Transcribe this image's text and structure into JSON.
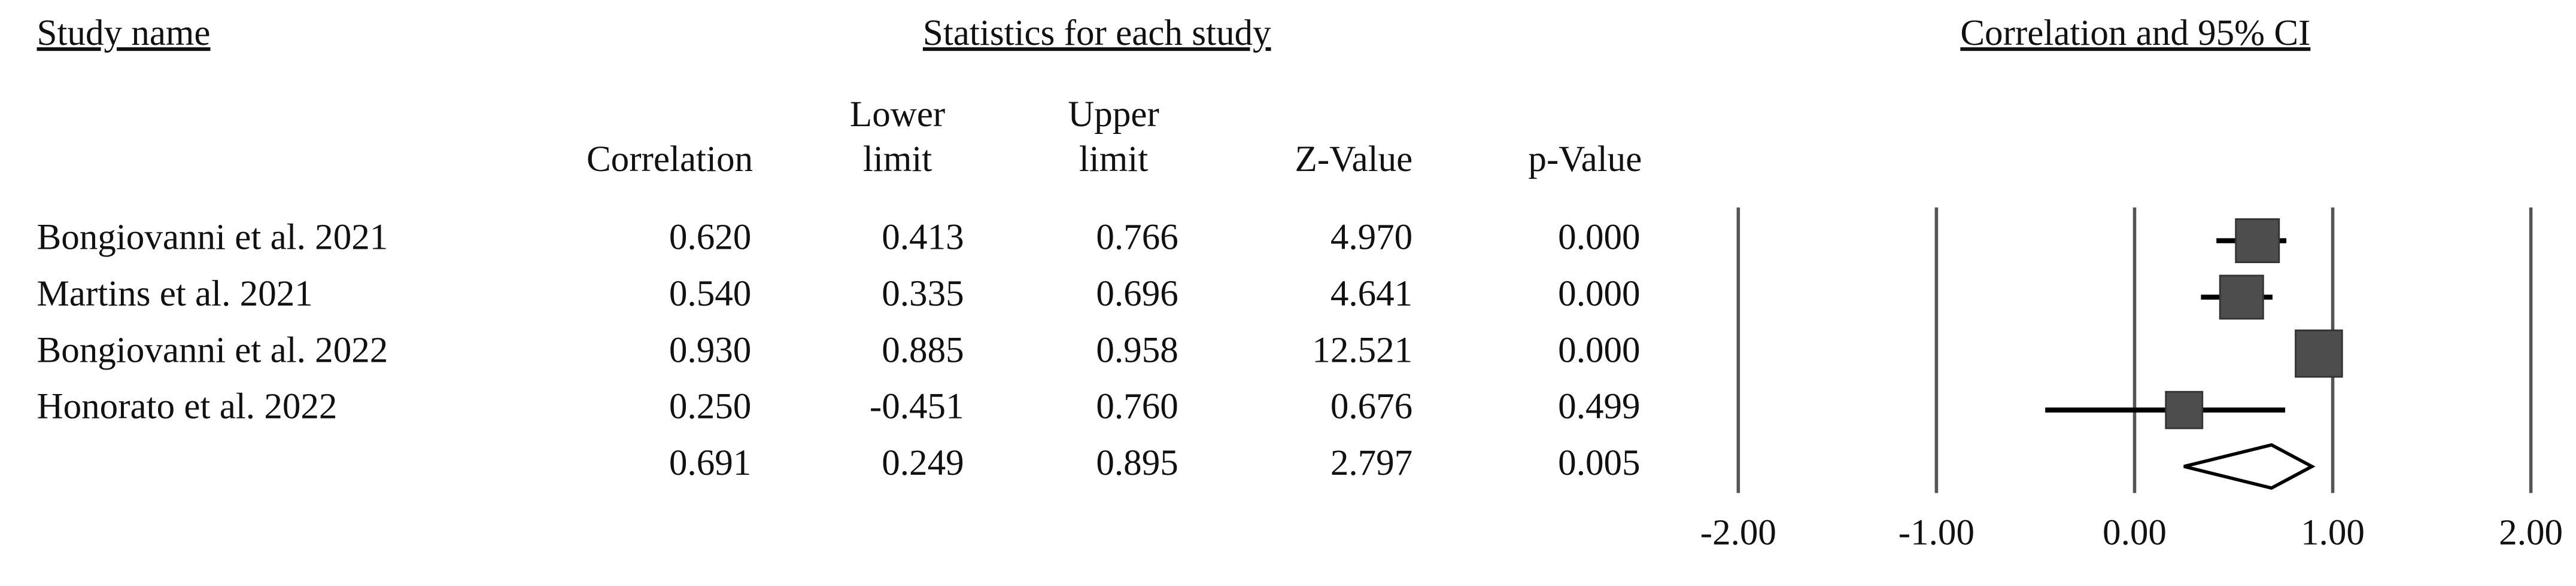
{
  "chart_data": {
    "type": "forest",
    "title": "Correlation and 95% CI",
    "study_header": "Study name",
    "stats_header": "Statistics for each study",
    "columns": [
      [
        "Correlation"
      ],
      [
        "Lower",
        "limit"
      ],
      [
        "Upper",
        "limit"
      ],
      [
        "Z-Value"
      ],
      [
        "p-Value"
      ]
    ],
    "categories": [
      "Bongiovanni et al. 2021",
      "Martins et al. 2021",
      "Bongiovanni et al. 2022",
      "Honorato et al. 2022",
      null
    ],
    "values": [
      0.62,
      0.54,
      0.93,
      0.25,
      0.691
    ],
    "value_labels": [
      "0.620",
      "0.540",
      "0.930",
      "0.250",
      "0.691"
    ],
    "lower": [
      0.413,
      0.335,
      0.885,
      -0.451,
      0.249
    ],
    "lower_labels": [
      "0.413",
      "0.335",
      "0.885",
      "-0.451",
      "0.249"
    ],
    "upper": [
      0.766,
      0.696,
      0.958,
      0.76,
      0.895
    ],
    "upper_labels": [
      "0.766",
      "0.696",
      "0.958",
      "0.760",
      "0.895"
    ],
    "z_labels": [
      "4.970",
      "4.641",
      "12.521",
      "0.676",
      "2.797"
    ],
    "p_labels": [
      "0.000",
      "0.000",
      "0.000",
      "0.499",
      "0.005"
    ],
    "xlim": [
      -2,
      2
    ],
    "xticks": [
      {
        "value": -2,
        "label": "-2.00"
      },
      {
        "value": -1,
        "label": "-1.00"
      },
      {
        "value": 0,
        "label": "0.00"
      },
      {
        "value": 1,
        "label": "1.00"
      },
      {
        "value": 2,
        "label": "2.00"
      }
    ],
    "marker_color": "#4d4d4d"
  }
}
